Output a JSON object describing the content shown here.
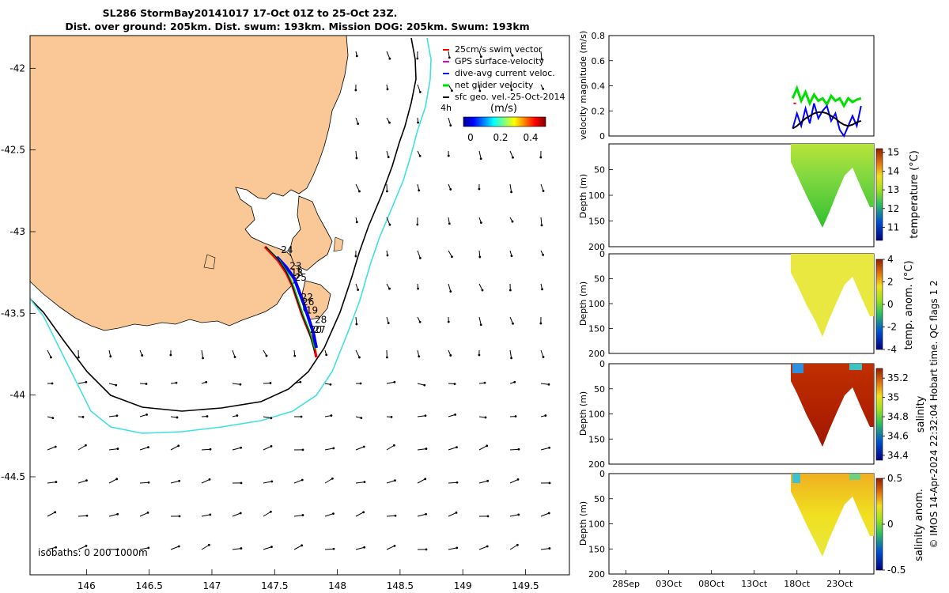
{
  "title": {
    "line1": "SL286 StormBay20141017 17-Oct 01Z to 25-Oct 23Z.",
    "line2": "Dist. over ground: 205km. Dist. swum: 193km. Mission DOG: 205km. Swum: 193km"
  },
  "colors": {
    "land": "#f9c896",
    "isobath_200": "#000000",
    "isobath_1000": "#40e0e0",
    "swim_vector": "#ff0000",
    "gps_velocity": "#dd00dd",
    "dive_avg": "#0000ff",
    "net_glider": "#00e000",
    "sfc_geo": "#000000"
  },
  "map": {
    "legend": [
      {
        "label": "25cm/s swim vector",
        "color": "#ff0000"
      },
      {
        "label": "GPS surface-velocity",
        "color": "#dd00dd"
      },
      {
        "label": "dive-avg current veloc.",
        "color": "#0000ff"
      },
      {
        "label": "net glider velocity",
        "color": "#00e000"
      },
      {
        "label": "sfc geo. vel.-25-Oct-2014",
        "color": "#000000"
      }
    ],
    "timestamp_label": "4h",
    "colorbar_unit": "(m/s)",
    "colorbar_ticks": [
      "0",
      "0.2",
      "0.4"
    ],
    "isobaths_label": "isobaths: 0   200  1000m",
    "day_labels": [
      {
        "text": "24",
        "lon": 147.55,
        "lat": -43.13
      },
      {
        "text": "23",
        "lon": 147.62,
        "lat": -43.23
      },
      {
        "text": "18",
        "lon": 147.63,
        "lat": -43.27
      },
      {
        "text": "25",
        "lon": 147.66,
        "lat": -43.3
      },
      {
        "text": "22",
        "lon": 147.71,
        "lat": -43.42
      },
      {
        "text": "26",
        "lon": 147.72,
        "lat": -43.45
      },
      {
        "text": "19",
        "lon": 147.75,
        "lat": -43.5
      },
      {
        "text": "28",
        "lon": 147.82,
        "lat": -43.56
      },
      {
        "text": "20",
        "lon": 147.78,
        "lat": -43.62
      },
      {
        "text": "27",
        "lon": 147.81,
        "lat": -43.62
      }
    ],
    "x_ticks": [
      "146",
      "146.5",
      "147",
      "147.5",
      "148",
      "148.5",
      "149",
      "149.5"
    ],
    "y_ticks": [
      "-42",
      "-42.5",
      "-43",
      "-43.5",
      "-44",
      "-44.5"
    ]
  },
  "chart_data": [
    {
      "type": "line",
      "ylabel": "velocity magnitude (m/s)",
      "ylim": [
        0,
        0.8
      ],
      "y_ticks": [
        "0",
        "0.2",
        "0.4",
        "0.6",
        "0.8"
      ],
      "x_days": [
        17.5,
        18,
        18.5,
        19,
        19.5,
        20,
        20.5,
        21,
        21.5,
        22,
        22.5,
        23,
        23.5,
        24,
        24.5,
        25,
        25.5
      ],
      "series": [
        {
          "color": "#00e000",
          "values": [
            0.3,
            0.38,
            0.28,
            0.35,
            0.26,
            0.33,
            0.28,
            0.3,
            0.25,
            0.32,
            0.28,
            0.3,
            0.24,
            0.3,
            0.27,
            0.29,
            0.3
          ]
        },
        {
          "color": "#0000ff",
          "values": [
            0.06,
            0.18,
            0.08,
            0.22,
            0.1,
            0.26,
            0.14,
            0.2,
            0.24,
            0.12,
            0.18,
            0.05,
            0.0,
            0.08,
            0.16,
            0.08,
            0.24
          ]
        },
        {
          "color": "#000000",
          "values": [
            0.06,
            0.08,
            0.11,
            0.14,
            0.16,
            0.18,
            0.19,
            0.19,
            0.18,
            0.16,
            0.14,
            0.11,
            0.09,
            0.08,
            0.09,
            0.11,
            0.12
          ]
        }
      ]
    },
    {
      "type": "heatmap",
      "ylabel": "Depth (m)",
      "cbar_label": "temperature (°C)",
      "cbar_ticks": [
        "11",
        "12",
        "13",
        "14",
        "15"
      ],
      "clim": [
        10.3,
        15.2
      ],
      "y_ticks": [
        "50",
        "100",
        "150",
        "200"
      ]
    },
    {
      "type": "heatmap",
      "ylabel": "Depth (m)",
      "cbar_label": "temp. anom. (°C)",
      "cbar_ticks": [
        "-4",
        "-2",
        "0",
        "2",
        "4"
      ],
      "clim": [
        -4,
        4
      ],
      "y_ticks": [
        "0",
        "50",
        "100",
        "150",
        "200"
      ]
    },
    {
      "type": "heatmap",
      "ylabel": "Depth (m)",
      "cbar_label": "salinity",
      "cbar_ticks": [
        "34.4",
        "34.6",
        "34.8",
        "35",
        "35.2"
      ],
      "clim": [
        34.35,
        35.3
      ],
      "y_ticks": [
        "0",
        "50",
        "100",
        "150",
        "200"
      ]
    },
    {
      "type": "heatmap",
      "ylabel": "Depth (m)",
      "cbar_label": "salinity anom.",
      "cbar_ticks": [
        "-0.5",
        "0",
        "0.5"
      ],
      "clim": [
        -0.5,
        0.5
      ],
      "y_ticks": [
        "0",
        "50",
        "100",
        "150",
        "200"
      ],
      "x_ticks": [
        "28Sep",
        "03Oct",
        "08Oct",
        "13Oct",
        "18Oct",
        "23Oct"
      ]
    }
  ],
  "footer": {
    "credit": "© IMOS 14-Apr-2024 22:32:04 Hobart time. QC flags 1  2"
  }
}
